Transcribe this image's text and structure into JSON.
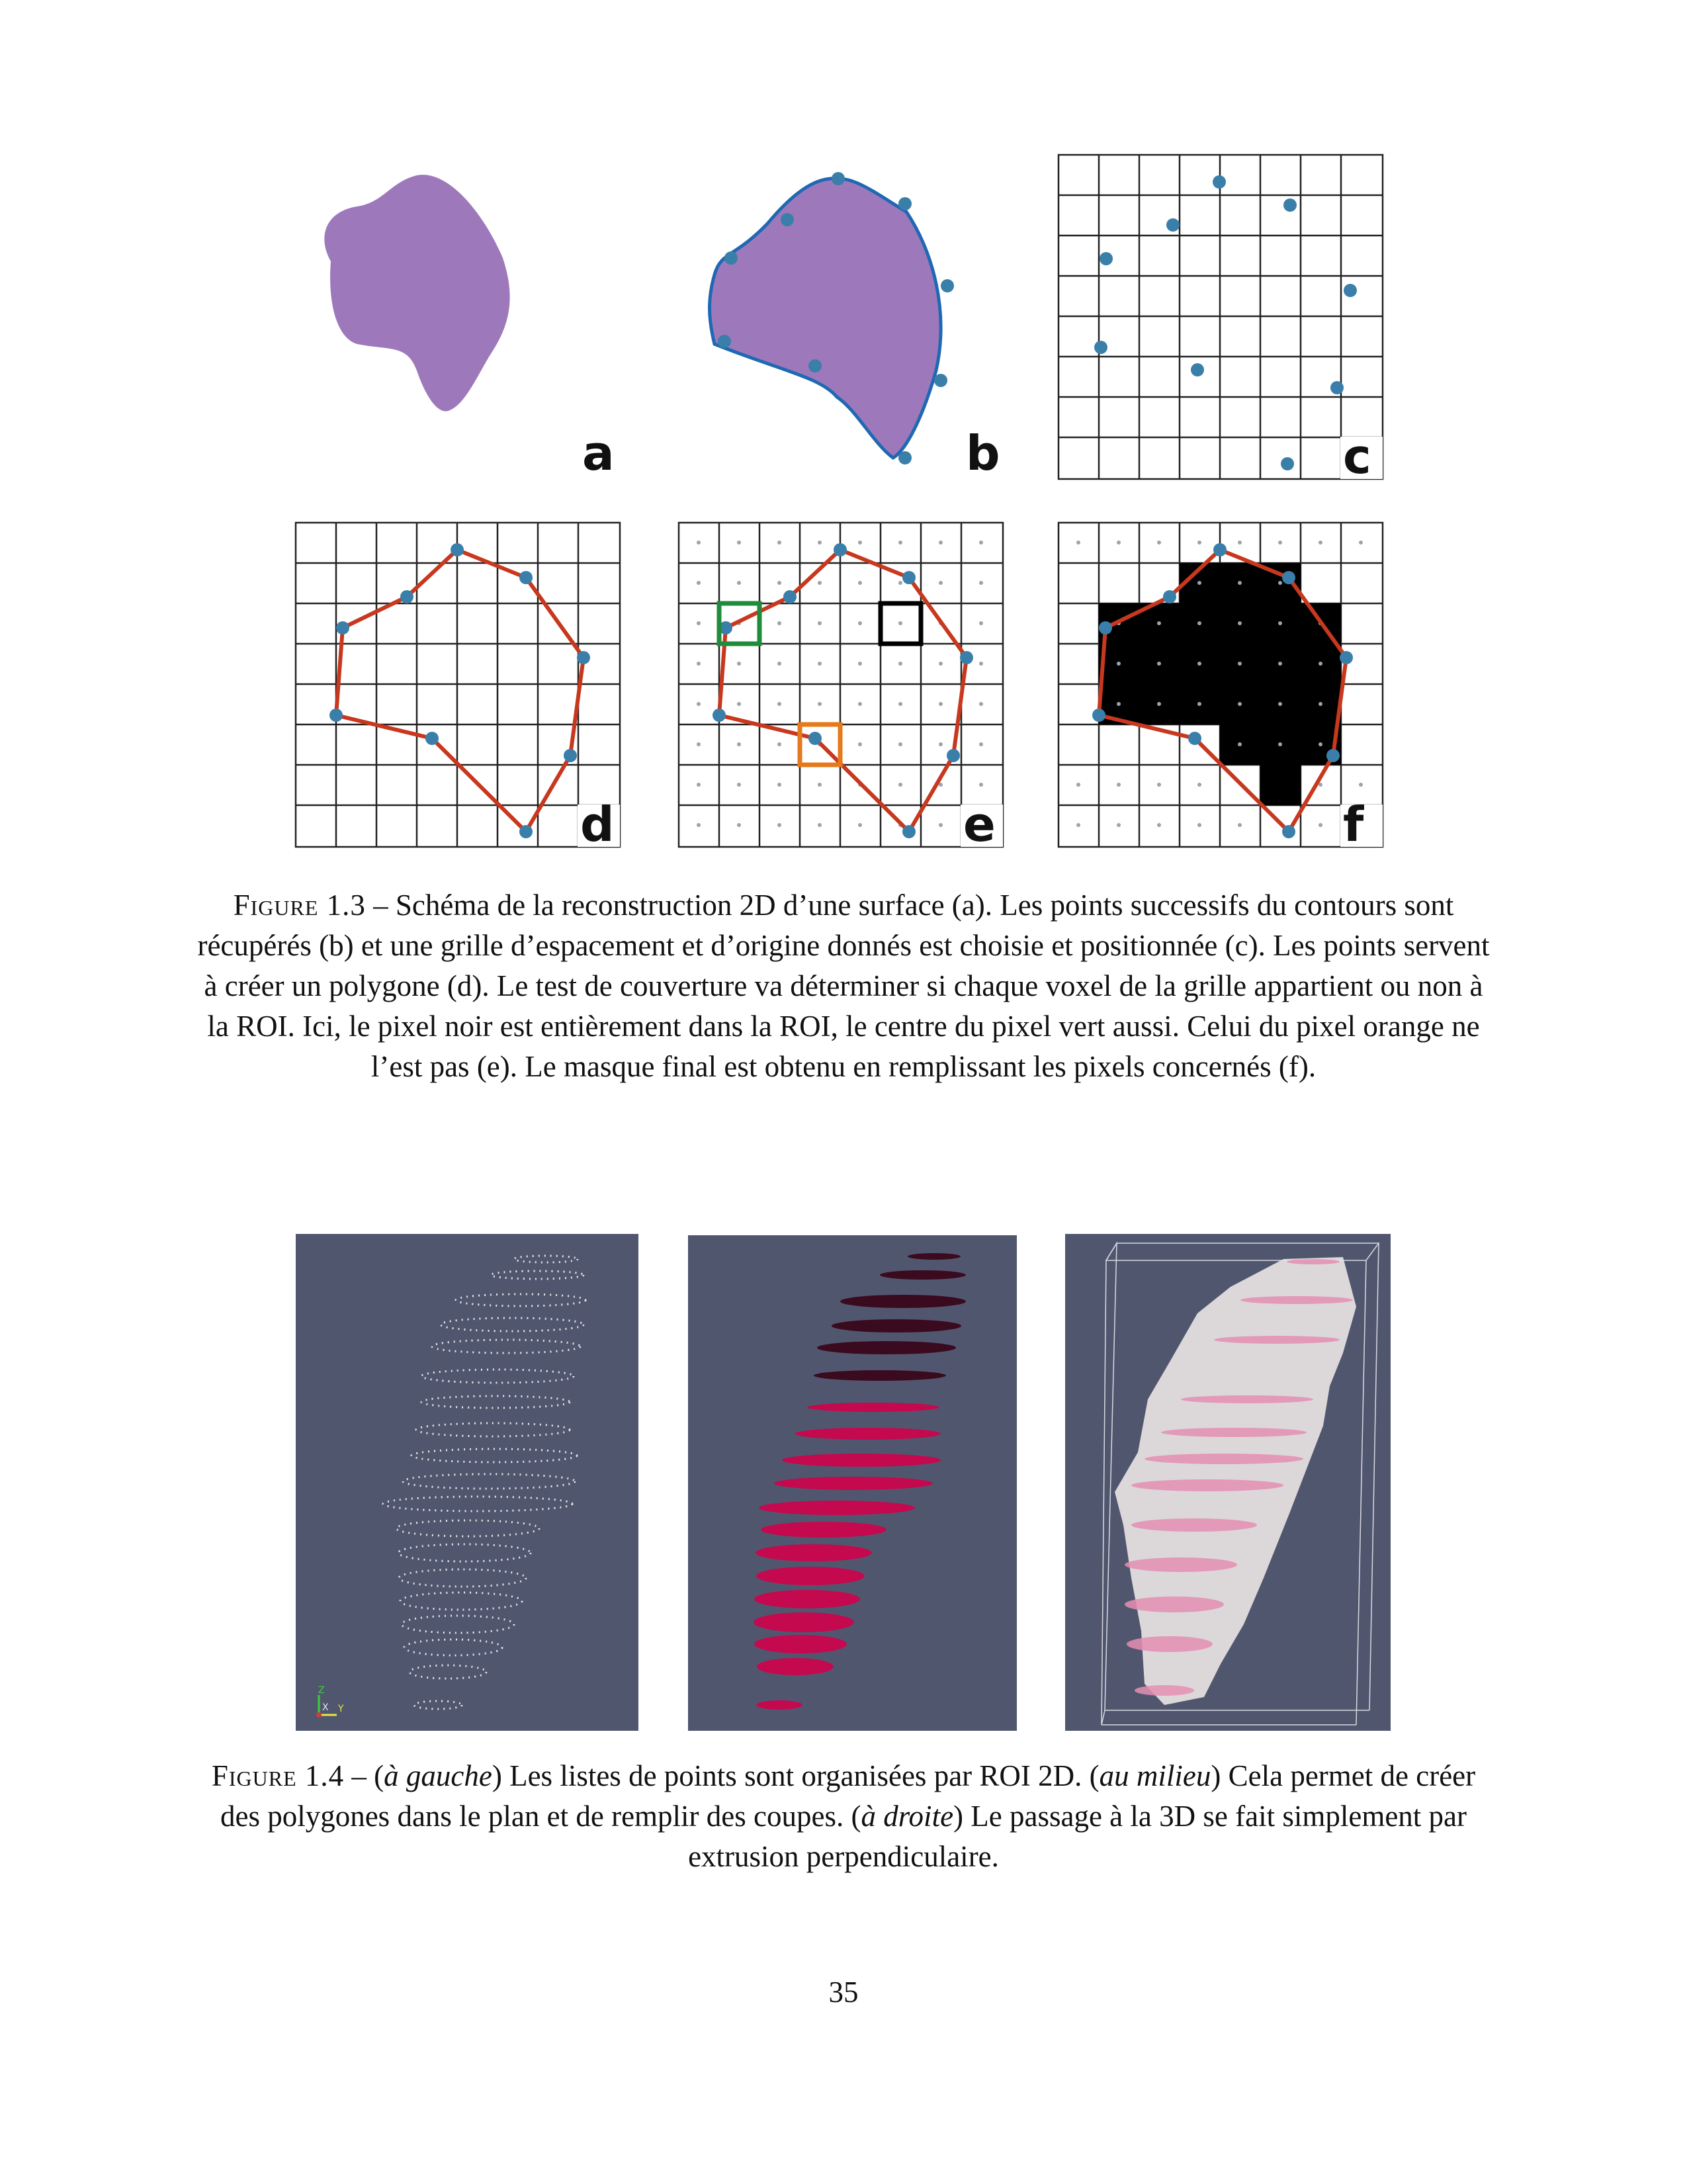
{
  "figure_1_3": {
    "panel_letters": [
      "a",
      "b",
      "c",
      "d",
      "e",
      "f"
    ],
    "colors": {
      "shape_fill": "#9d79bb",
      "contour": "#1f68b3",
      "points": "#3a7fa9",
      "polygon": "#c7381e",
      "green_box": "#1e8c3a",
      "orange_box": "#e57a1c",
      "mask_fill": "#000000",
      "grid": "#222222"
    },
    "caption": {
      "label": "Figure 1.3",
      "text": " – Schéma de la reconstruction 2D d’une surface (a). Les points successifs du contours sont récupérés (b) et une grille d’espacement et d’origine donnés est choisie et positionnée (c). Les points servent à créer un polygone (d). Le test de couverture va déterminer si chaque voxel de la grille appartient ou non à la ROI. Ici, le pixel noir est entièrement dans la ROI, le centre du pixel vert aussi. Celui du pixel orange ne l’est pas (e). Le masque final est obtenu en remplissant les pixels concernés (f)."
    }
  },
  "figure_1_4": {
    "colors": {
      "background": "#51566f",
      "points": "#e6e6e6",
      "slices_dark": "#3a0a1f",
      "slices": "#c4094f",
      "volume": "#e8e3e3",
      "volume_slices": "#e58fb3"
    },
    "axis_labels": [
      "Z",
      "X",
      "Y"
    ],
    "caption": {
      "label": "Figure 1.4",
      "p1": " – (",
      "em1": "à gauche",
      "p2": ") Les listes de points sont organisées par ROI 2D. (",
      "em2": "au milieu",
      "p3": ") Cela permet de créer des polygones dans le plan et de remplir des coupes. (",
      "em3": "à droite",
      "p4": ") Le passage à la 3D se fait simplement par extrusion perpendiculaire."
    }
  },
  "page_number": "35"
}
